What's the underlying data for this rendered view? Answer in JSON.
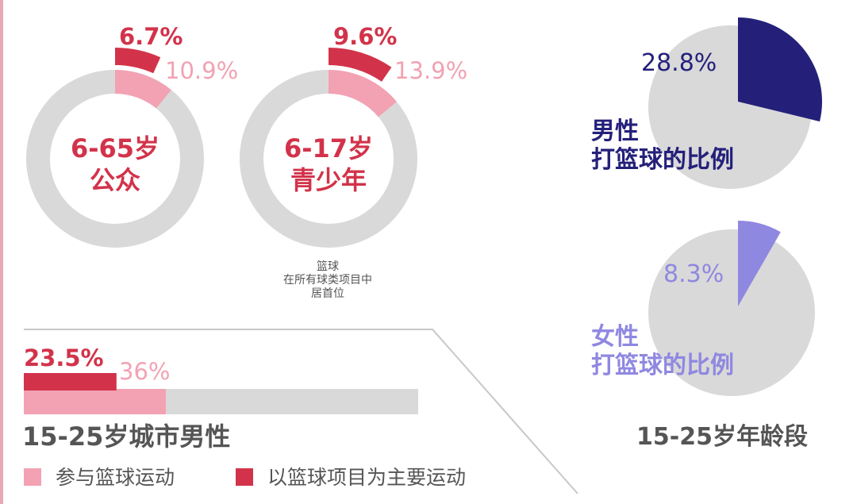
{
  "colors": {
    "primary": "#d2334a",
    "secondary": "#f2a2b3",
    "track": "#d9d9d9",
    "male": "#24207a",
    "female": "#8f88e0",
    "label_gray": "#555555"
  },
  "note_lines": [
    "篮球",
    "在所有球类项目中",
    "居首位"
  ],
  "section_labels": {
    "city_male": "15-25岁城市男性",
    "age_group": "15-25岁年龄段"
  },
  "legend": [
    {
      "label": "参与篮球运动",
      "color_key": "secondary"
    },
    {
      "label": "以篮球项目为主要运动",
      "color_key": "primary"
    }
  ],
  "chart_data": [
    {
      "type": "pie",
      "variant": "donut",
      "center_label": [
        "6-65岁",
        "公众"
      ],
      "slices": [
        {
          "name": "以篮球项目为主要运动",
          "value": 6.7,
          "label": "6.7%"
        },
        {
          "name": "参与篮球运动",
          "value": 10.9,
          "label": "10.9%"
        }
      ]
    },
    {
      "type": "pie",
      "variant": "donut",
      "center_label": [
        "6-17岁",
        "青少年"
      ],
      "slices": [
        {
          "name": "以篮球项目为主要运动",
          "value": 9.6,
          "label": "9.6%"
        },
        {
          "name": "参与篮球运动",
          "value": 13.9,
          "label": "13.9%"
        }
      ]
    },
    {
      "type": "bar",
      "orientation": "horizontal",
      "title": "15-25岁城市男性",
      "series": [
        {
          "name": "以篮球项目为主要运动",
          "value": 23.5,
          "label": "23.5%"
        },
        {
          "name": "参与篮球运动",
          "value": 36,
          "label": "36%"
        }
      ],
      "xlim": [
        0,
        100
      ]
    },
    {
      "type": "pie",
      "label": [
        "男性",
        "打篮球的比例"
      ],
      "slices": [
        {
          "value": 28.8,
          "label": "28.8%"
        }
      ]
    },
    {
      "type": "pie",
      "label": [
        "女性",
        "打篮球的比例"
      ],
      "slices": [
        {
          "value": 8.3,
          "label": "8.3%"
        }
      ]
    }
  ]
}
